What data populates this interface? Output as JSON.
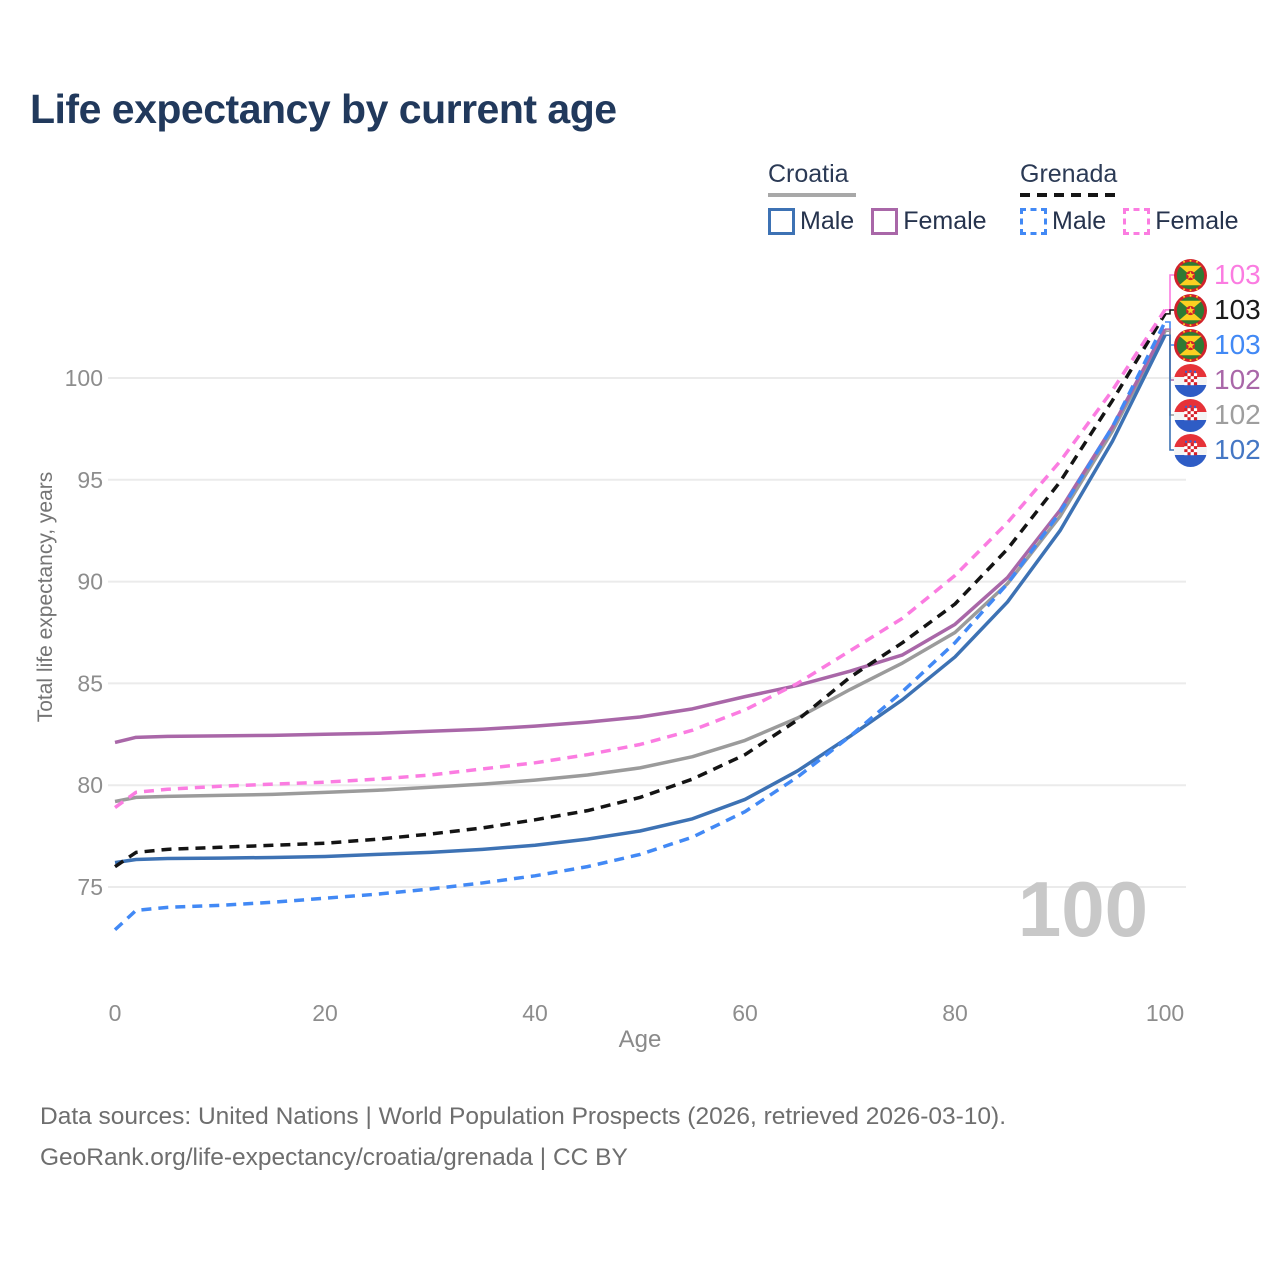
{
  "title": "Life expectancy by current age",
  "legend": {
    "croatia": {
      "label": "Croatia",
      "male": "Male",
      "female": "Female"
    },
    "grenada": {
      "label": "Grenada",
      "male": "Male",
      "female": "Female"
    }
  },
  "watermark": "100",
  "footer": {
    "line1": "Data sources: United Nations | World Population Prospects (2026, retrieved 2026-03-10).",
    "line2": "GeoRank.org/life-expectancy/croatia/grenada | CC BY"
  },
  "chart_data": {
    "type": "line",
    "title": "Life expectancy by current age",
    "xlabel": "Age",
    "ylabel": "Total life expectancy, years",
    "xlim": [
      0,
      100
    ],
    "ylim": [
      72.5,
      104.5
    ],
    "x_ticks": [
      0,
      20,
      40,
      60,
      80,
      100
    ],
    "y_ticks": [
      75,
      80,
      85,
      90,
      95,
      100
    ],
    "grid": "horizontal-only",
    "legend_position": "top-right",
    "ages": [
      0,
      2,
      5,
      10,
      15,
      20,
      25,
      30,
      35,
      40,
      45,
      50,
      55,
      60,
      65,
      70,
      75,
      80,
      85,
      90,
      95,
      100
    ],
    "series": [
      {
        "id": "croatia_total",
        "name": "Croatia",
        "sex": "Both",
        "color": "#9b9b9b",
        "dash": "solid",
        "flag": "croatia",
        "end_label": "102",
        "end_label_color": "#9e9e9e",
        "values": [
          79.2,
          79.4,
          79.45,
          79.5,
          79.55,
          79.65,
          79.75,
          79.9,
          80.05,
          80.25,
          80.5,
          80.85,
          81.4,
          82.2,
          83.3,
          84.7,
          86.0,
          87.5,
          89.9,
          93.2,
          97.4,
          102.3
        ]
      },
      {
        "id": "croatia_female",
        "name": "Croatia",
        "sex": "Female",
        "color": "#a967a8",
        "dash": "solid",
        "flag": "croatia",
        "end_label": "102",
        "end_label_color": "#a967a8",
        "values": [
          82.1,
          82.35,
          82.4,
          82.42,
          82.45,
          82.5,
          82.55,
          82.65,
          82.75,
          82.9,
          83.1,
          83.35,
          83.75,
          84.35,
          84.9,
          85.6,
          86.4,
          87.9,
          90.2,
          93.5,
          97.6,
          102.4
        ]
      },
      {
        "id": "croatia_male",
        "name": "Croatia",
        "sex": "Male",
        "color": "#3d72b4",
        "dash": "solid",
        "flag": "croatia",
        "end_label": "102",
        "end_label_color": "#4577c4",
        "values": [
          76.2,
          76.35,
          76.4,
          76.42,
          76.45,
          76.5,
          76.6,
          76.7,
          76.85,
          77.05,
          77.35,
          77.75,
          78.35,
          79.3,
          80.7,
          82.4,
          84.2,
          86.3,
          89.0,
          92.5,
          96.9,
          102.1
        ]
      },
      {
        "id": "grenada_total",
        "name": "Grenada",
        "sex": "Both",
        "color": "#141414",
        "dash": "dashed",
        "flag": "grenada",
        "end_label": "103",
        "end_label_color": "#1a1a1a",
        "values": [
          76.0,
          76.7,
          76.85,
          76.95,
          77.05,
          77.15,
          77.35,
          77.6,
          77.9,
          78.3,
          78.75,
          79.4,
          80.3,
          81.5,
          83.2,
          85.3,
          87.0,
          88.9,
          91.6,
          94.9,
          98.9,
          103.15
        ]
      },
      {
        "id": "grenada_female",
        "name": "Grenada",
        "sex": "Female",
        "color": "#fb7ce1",
        "dash": "dashed",
        "flag": "grenada",
        "end_label": "103",
        "end_label_color": "#fb7ce1",
        "values": [
          78.9,
          79.65,
          79.8,
          79.95,
          80.05,
          80.15,
          80.3,
          80.5,
          80.8,
          81.1,
          81.5,
          82.0,
          82.7,
          83.7,
          85.0,
          86.6,
          88.2,
          90.3,
          92.9,
          95.9,
          99.4,
          103.35
        ]
      },
      {
        "id": "grenada_male",
        "name": "Grenada",
        "sex": "Male",
        "color": "#4289f5",
        "dash": "dashed",
        "flag": "grenada",
        "end_label": "103",
        "end_label_color": "#4289f5",
        "values": [
          72.9,
          73.85,
          74.0,
          74.1,
          74.25,
          74.45,
          74.65,
          74.9,
          75.2,
          75.55,
          76.0,
          76.6,
          77.45,
          78.7,
          80.4,
          82.4,
          84.6,
          87.0,
          89.9,
          93.4,
          97.6,
          102.75
        ]
      }
    ],
    "end_rows": [
      "grenada_female",
      "grenada_total",
      "grenada_male",
      "croatia_female",
      "croatia_total",
      "croatia_male"
    ]
  }
}
